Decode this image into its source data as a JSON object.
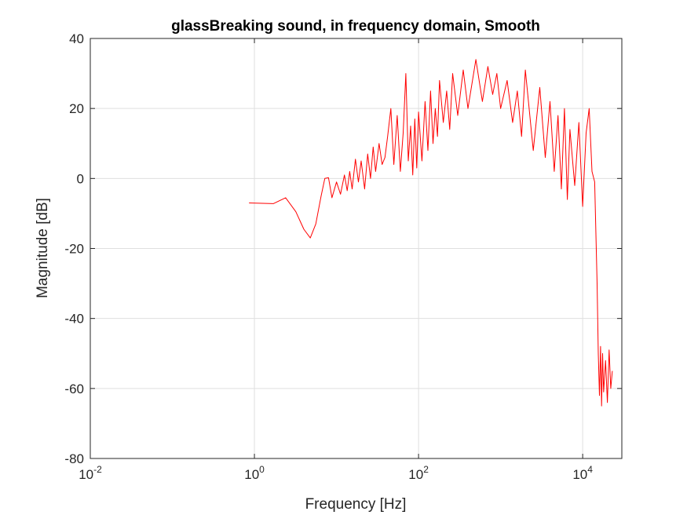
{
  "chart_data": {
    "type": "line",
    "title": "glassBreaking sound, in frequency domain, Smooth",
    "xlabel": "Frequency [Hz]",
    "ylabel": "Magnitude [dB]",
    "xscale": "log",
    "xlim": [
      0.01,
      30000
    ],
    "ylim": [
      -80,
      40
    ],
    "grid": true,
    "x_ticks": [
      {
        "base": "10",
        "exp": "-2",
        "value": 0.01
      },
      {
        "base": "10",
        "exp": "0",
        "value": 1
      },
      {
        "base": "10",
        "exp": "2",
        "value": 100
      },
      {
        "base": "10",
        "exp": "4",
        "value": 10000
      }
    ],
    "y_ticks": [
      "-80",
      "-60",
      "-40",
      "-20",
      "0",
      "20",
      "40"
    ],
    "line_color": "#ff0000",
    "series": [
      {
        "x": [
          0.86,
          1.7,
          2.4,
          3.2,
          4.0,
          4.8,
          5.6,
          6.5,
          7.2,
          8.0,
          8.8,
          10,
          11.2,
          12.5,
          13.5,
          14.5,
          15.5,
          17,
          18.5,
          20,
          22,
          24,
          26,
          28,
          30,
          33,
          36,
          39,
          42,
          46,
          50,
          55,
          60,
          65,
          70,
          75,
          80,
          85,
          90,
          95,
          100,
          110,
          120,
          130,
          140,
          150,
          160,
          170,
          180,
          200,
          220,
          240,
          260,
          300,
          350,
          400,
          500,
          600,
          700,
          800,
          900,
          1000,
          1200,
          1400,
          1600,
          1800,
          2000,
          2500,
          3000,
          3500,
          4000,
          4500,
          5000,
          5500,
          6000,
          6500,
          7000,
          8000,
          9000,
          10000,
          11000,
          12000,
          13000,
          14000,
          15000,
          15500,
          16000,
          16500,
          17000,
          17500,
          18000,
          19000,
          20000,
          21000,
          22000,
          23000
        ],
        "y": [
          -7,
          -7.2,
          -5.5,
          -9.5,
          -14.5,
          -17,
          -13,
          -5,
          0,
          0.2,
          -5.5,
          -1,
          -4.5,
          1,
          -3.5,
          2,
          -3,
          5.5,
          -1,
          5,
          -3,
          7,
          0,
          9,
          2,
          10,
          4,
          6,
          12,
          20,
          4,
          18,
          2,
          13,
          30,
          5,
          15,
          1,
          17,
          3,
          19,
          5,
          22,
          8,
          25,
          10,
          20,
          12,
          28,
          16,
          25,
          14,
          30,
          18,
          31,
          20,
          34,
          22,
          32,
          24,
          30,
          20,
          28,
          16,
          25,
          12,
          31,
          8,
          26,
          6,
          22,
          2,
          18,
          -3,
          20,
          -6,
          14,
          -2,
          16,
          -8,
          13,
          20,
          2,
          -1,
          -30,
          -50,
          -62,
          -48,
          -65,
          -50,
          -61,
          -52,
          -64,
          -49,
          -60,
          -55
        ]
      }
    ]
  }
}
